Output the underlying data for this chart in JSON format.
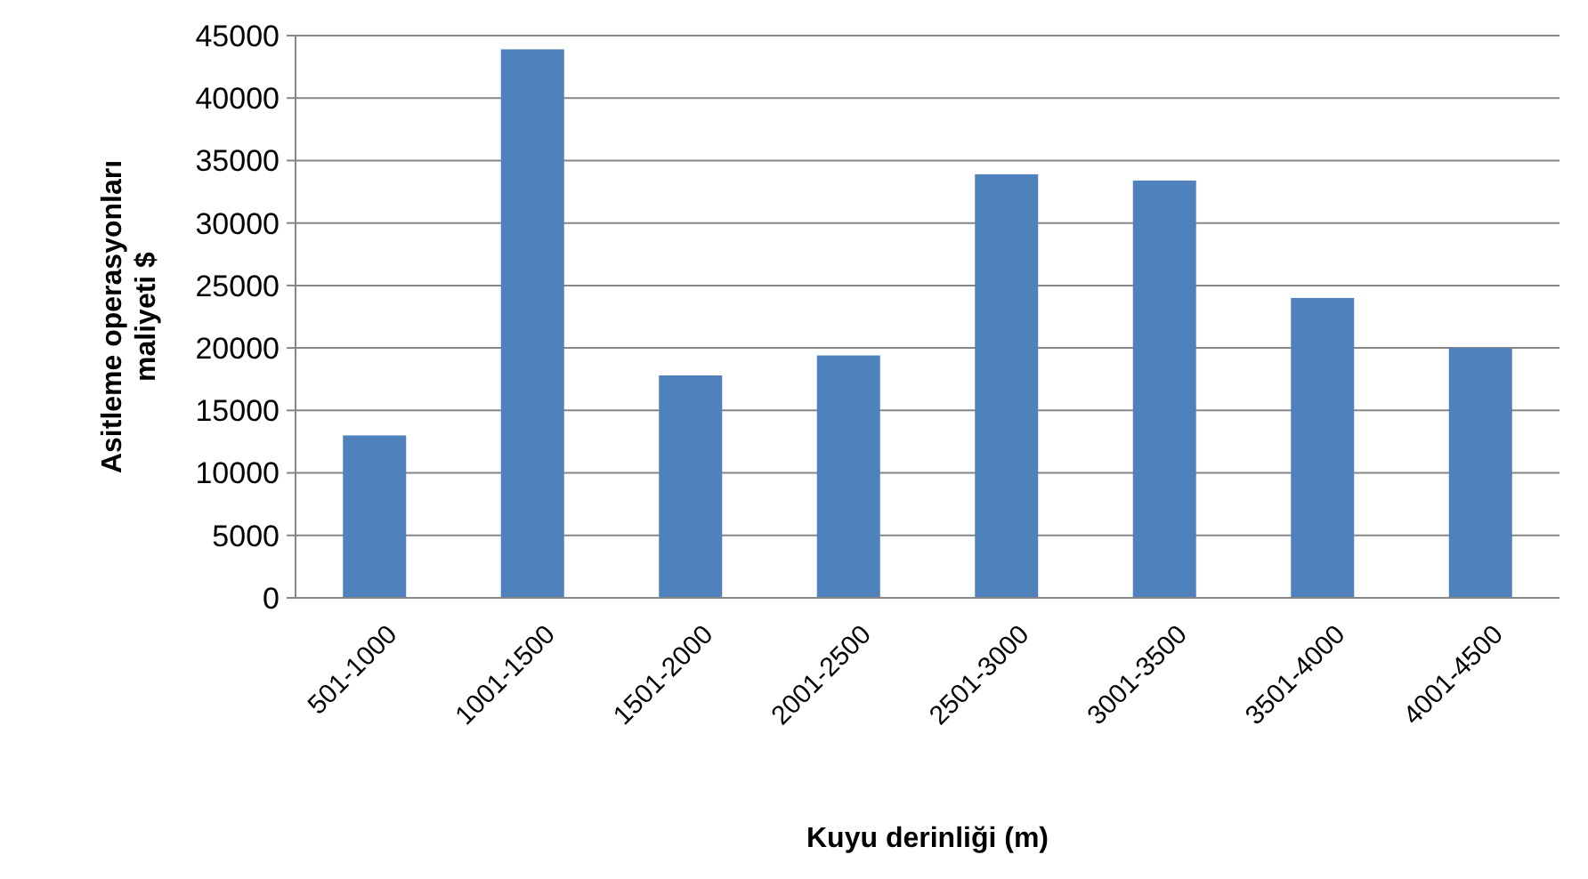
{
  "chart_data": {
    "type": "bar",
    "xlabel": "Kuyu derinliği (m)",
    "ylabel": "Asitleme operasyonları\nmaliyeti $",
    "categories": [
      "501-1000",
      "1001-1500",
      "1501-2000",
      "2001-2500",
      "2501-3000",
      "3001-3500",
      "3501-4000",
      "4001-4500"
    ],
    "values": [
      13000,
      43900,
      17800,
      19400,
      33900,
      33400,
      24000,
      20000
    ],
    "color": "#4f81bd",
    "ylim": [
      0,
      45000
    ],
    "yticks": [
      0,
      5000,
      10000,
      15000,
      20000,
      25000,
      30000,
      35000,
      40000,
      45000
    ],
    "grid": "y"
  }
}
